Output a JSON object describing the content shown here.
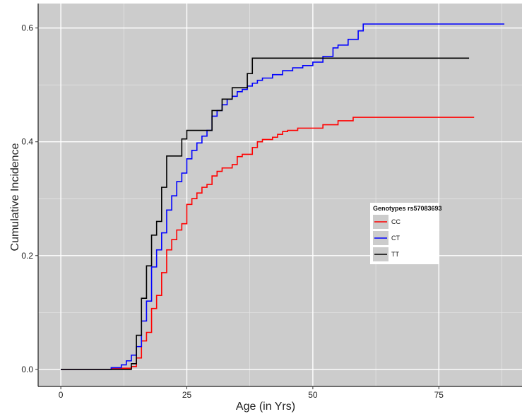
{
  "chart_data": {
    "type": "line",
    "step": true,
    "xlabel": "Age (in Yrs)",
    "ylabel": "Cumulative Incidence",
    "xlim": [
      -4.5,
      91.5
    ],
    "ylim": [
      -0.03,
      0.643
    ],
    "xticks": [
      0,
      25,
      50,
      75
    ],
    "xtick_labels": [
      "0",
      "25",
      "50",
      "75"
    ],
    "yticks": [
      0.0,
      0.2,
      0.4,
      0.6
    ],
    "ytick_labels": [
      "0.0",
      "0.2",
      "0.4",
      "0.6"
    ],
    "grid": true,
    "background": "#cccccc",
    "legend": {
      "title": "Genotypes rs57083693",
      "position": "right-center"
    },
    "series": [
      {
        "name": "CC",
        "color": "#ff0000",
        "x": [
          0,
          10,
          14,
          15,
          16,
          17,
          18,
          19,
          20,
          21,
          22,
          23,
          24,
          25,
          26,
          27,
          28,
          29,
          30,
          31,
          32,
          34,
          35,
          36,
          38,
          39,
          40,
          42,
          43,
          44,
          45,
          47,
          52,
          55,
          58,
          82
        ],
        "y": [
          0,
          0.002,
          0.005,
          0.02,
          0.05,
          0.065,
          0.107,
          0.13,
          0.17,
          0.21,
          0.228,
          0.245,
          0.256,
          0.29,
          0.3,
          0.31,
          0.32,
          0.325,
          0.34,
          0.348,
          0.354,
          0.36,
          0.374,
          0.378,
          0.39,
          0.4,
          0.404,
          0.408,
          0.413,
          0.418,
          0.42,
          0.424,
          0.43,
          0.437,
          0.443,
          0.443
        ]
      },
      {
        "name": "CT",
        "color": "#0000ff",
        "x": [
          0,
          10,
          12,
          13,
          14,
          15,
          16,
          17,
          18,
          19,
          20,
          21,
          22,
          23,
          24,
          25,
          26,
          27,
          28,
          29,
          30,
          31,
          32,
          33,
          34,
          35,
          36,
          37,
          38,
          39,
          40,
          42,
          44,
          46,
          48,
          50,
          52,
          54,
          55,
          57,
          59,
          60,
          61,
          88
        ],
        "y": [
          0,
          0.003,
          0.008,
          0.015,
          0.025,
          0.04,
          0.085,
          0.12,
          0.18,
          0.21,
          0.24,
          0.28,
          0.305,
          0.33,
          0.345,
          0.37,
          0.385,
          0.398,
          0.41,
          0.42,
          0.445,
          0.455,
          0.465,
          0.475,
          0.48,
          0.488,
          0.492,
          0.498,
          0.503,
          0.508,
          0.512,
          0.518,
          0.525,
          0.53,
          0.534,
          0.54,
          0.55,
          0.565,
          0.57,
          0.58,
          0.595,
          0.607,
          0.607,
          0.607
        ]
      },
      {
        "name": "TT",
        "color": "#000000",
        "x": [
          0,
          14,
          15,
          16,
          17,
          18,
          19,
          20,
          21,
          22,
          24,
          25,
          30,
          32,
          34,
          37,
          38,
          81
        ],
        "y": [
          0,
          0.01,
          0.06,
          0.125,
          0.182,
          0.236,
          0.26,
          0.32,
          0.375,
          0.375,
          0.405,
          0.42,
          0.455,
          0.475,
          0.495,
          0.52,
          0.547,
          0.547
        ]
      }
    ]
  }
}
